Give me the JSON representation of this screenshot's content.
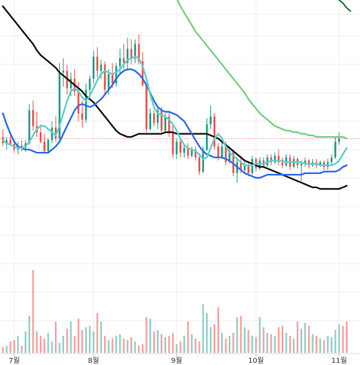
{
  "chart_data": {
    "type": "candlestick",
    "title": "",
    "xlabel": "",
    "ylabel": "",
    "grid": true,
    "x_ticks": [
      {
        "label": "7월",
        "index": 3
      },
      {
        "label": "8월",
        "index": 24
      },
      {
        "label": "9월",
        "index": 46
      },
      {
        "label": "10월",
        "index": 67
      },
      {
        "label": "11월",
        "index": 89
      }
    ],
    "last_price": 64,
    "candles": [
      {
        "o": 66,
        "h": 76,
        "l": 54,
        "c": 58
      },
      {
        "o": 58,
        "h": 66,
        "l": 50,
        "c": 62
      },
      {
        "o": 62,
        "h": 70,
        "l": 56,
        "c": 57
      },
      {
        "o": 57,
        "h": 63,
        "l": 46,
        "c": 50
      },
      {
        "o": 50,
        "h": 60,
        "l": 44,
        "c": 55
      },
      {
        "o": 55,
        "h": 62,
        "l": 48,
        "c": 52
      },
      {
        "o": 52,
        "h": 62,
        "l": 47,
        "c": 58
      },
      {
        "o": 58,
        "h": 108,
        "l": 56,
        "c": 100
      },
      {
        "o": 100,
        "h": 112,
        "l": 74,
        "c": 80
      },
      {
        "o": 80,
        "h": 98,
        "l": 66,
        "c": 72
      },
      {
        "o": 72,
        "h": 82,
        "l": 58,
        "c": 60
      },
      {
        "o": 60,
        "h": 70,
        "l": 45,
        "c": 48
      },
      {
        "o": 48,
        "h": 64,
        "l": 46,
        "c": 62
      },
      {
        "o": 62,
        "h": 86,
        "l": 58,
        "c": 78
      },
      {
        "o": 78,
        "h": 92,
        "l": 60,
        "c": 64
      },
      {
        "o": 64,
        "h": 160,
        "l": 62,
        "c": 148
      },
      {
        "o": 148,
        "h": 166,
        "l": 130,
        "c": 150
      },
      {
        "o": 150,
        "h": 158,
        "l": 120,
        "c": 128
      },
      {
        "o": 128,
        "h": 148,
        "l": 118,
        "c": 140
      },
      {
        "o": 140,
        "h": 152,
        "l": 118,
        "c": 124
      },
      {
        "o": 124,
        "h": 136,
        "l": 86,
        "c": 96
      },
      {
        "o": 96,
        "h": 112,
        "l": 78,
        "c": 88
      },
      {
        "o": 88,
        "h": 134,
        "l": 84,
        "c": 126
      },
      {
        "o": 126,
        "h": 144,
        "l": 116,
        "c": 140
      },
      {
        "o": 140,
        "h": 176,
        "l": 134,
        "c": 168
      },
      {
        "o": 168,
        "h": 180,
        "l": 142,
        "c": 150
      },
      {
        "o": 150,
        "h": 164,
        "l": 140,
        "c": 158
      },
      {
        "o": 158,
        "h": 162,
        "l": 120,
        "c": 126
      },
      {
        "o": 126,
        "h": 152,
        "l": 120,
        "c": 146
      },
      {
        "o": 146,
        "h": 160,
        "l": 128,
        "c": 134
      },
      {
        "o": 134,
        "h": 160,
        "l": 130,
        "c": 156
      },
      {
        "o": 156,
        "h": 178,
        "l": 146,
        "c": 166
      },
      {
        "o": 166,
        "h": 184,
        "l": 152,
        "c": 160
      },
      {
        "o": 160,
        "h": 192,
        "l": 150,
        "c": 178
      },
      {
        "o": 178,
        "h": 190,
        "l": 158,
        "c": 166
      },
      {
        "o": 166,
        "h": 190,
        "l": 160,
        "c": 184
      },
      {
        "o": 184,
        "h": 196,
        "l": 158,
        "c": 162
      },
      {
        "o": 162,
        "h": 174,
        "l": 130,
        "c": 132
      },
      {
        "o": 132,
        "h": 134,
        "l": 72,
        "c": 76
      },
      {
        "o": 76,
        "h": 102,
        "l": 74,
        "c": 96
      },
      {
        "o": 96,
        "h": 100,
        "l": 80,
        "c": 84
      },
      {
        "o": 84,
        "h": 104,
        "l": 76,
        "c": 100
      },
      {
        "o": 100,
        "h": 104,
        "l": 70,
        "c": 74
      },
      {
        "o": 74,
        "h": 96,
        "l": 72,
        "c": 92
      },
      {
        "o": 92,
        "h": 98,
        "l": 66,
        "c": 72
      },
      {
        "o": 72,
        "h": 82,
        "l": 40,
        "c": 44
      },
      {
        "o": 44,
        "h": 64,
        "l": 38,
        "c": 60
      },
      {
        "o": 60,
        "h": 66,
        "l": 40,
        "c": 46
      },
      {
        "o": 46,
        "h": 56,
        "l": 40,
        "c": 52
      },
      {
        "o": 52,
        "h": 58,
        "l": 38,
        "c": 42
      },
      {
        "o": 42,
        "h": 54,
        "l": 40,
        "c": 50
      },
      {
        "o": 50,
        "h": 54,
        "l": 36,
        "c": 40
      },
      {
        "o": 40,
        "h": 44,
        "l": 18,
        "c": 22
      },
      {
        "o": 22,
        "h": 54,
        "l": 20,
        "c": 50
      },
      {
        "o": 50,
        "h": 90,
        "l": 48,
        "c": 82
      },
      {
        "o": 82,
        "h": 106,
        "l": 76,
        "c": 92
      },
      {
        "o": 92,
        "h": 96,
        "l": 50,
        "c": 54
      },
      {
        "o": 54,
        "h": 58,
        "l": 36,
        "c": 40
      },
      {
        "o": 40,
        "h": 60,
        "l": 38,
        "c": 54
      },
      {
        "o": 54,
        "h": 60,
        "l": 30,
        "c": 34
      },
      {
        "o": 34,
        "h": 54,
        "l": 32,
        "c": 48
      },
      {
        "o": 48,
        "h": 50,
        "l": 16,
        "c": 20
      },
      {
        "o": 20,
        "h": 40,
        "l": 8,
        "c": 34
      },
      {
        "o": 34,
        "h": 42,
        "l": 20,
        "c": 24
      },
      {
        "o": 24,
        "h": 38,
        "l": 20,
        "c": 30
      },
      {
        "o": 30,
        "h": 34,
        "l": 16,
        "c": 20
      },
      {
        "o": 20,
        "h": 42,
        "l": 18,
        "c": 38
      },
      {
        "o": 38,
        "h": 40,
        "l": 22,
        "c": 26
      },
      {
        "o": 26,
        "h": 40,
        "l": 24,
        "c": 36
      },
      {
        "o": 36,
        "h": 40,
        "l": 26,
        "c": 30
      },
      {
        "o": 30,
        "h": 44,
        "l": 28,
        "c": 40
      },
      {
        "o": 40,
        "h": 44,
        "l": 30,
        "c": 34
      },
      {
        "o": 34,
        "h": 46,
        "l": 32,
        "c": 42
      },
      {
        "o": 42,
        "h": 50,
        "l": 30,
        "c": 34
      },
      {
        "o": 34,
        "h": 40,
        "l": 26,
        "c": 30
      },
      {
        "o": 30,
        "h": 44,
        "l": 28,
        "c": 40
      },
      {
        "o": 40,
        "h": 44,
        "l": 24,
        "c": 28
      },
      {
        "o": 28,
        "h": 42,
        "l": 26,
        "c": 38
      },
      {
        "o": 38,
        "h": 40,
        "l": 26,
        "c": 30
      },
      {
        "o": 30,
        "h": 36,
        "l": 10,
        "c": 32
      },
      {
        "o": 32,
        "h": 40,
        "l": 28,
        "c": 36
      },
      {
        "o": 36,
        "h": 38,
        "l": 26,
        "c": 30
      },
      {
        "o": 30,
        "h": 38,
        "l": 28,
        "c": 34
      },
      {
        "o": 34,
        "h": 38,
        "l": 26,
        "c": 30
      },
      {
        "o": 30,
        "h": 36,
        "l": 28,
        "c": 34
      },
      {
        "o": 34,
        "h": 36,
        "l": 24,
        "c": 28
      },
      {
        "o": 28,
        "h": 38,
        "l": 24,
        "c": 34
      },
      {
        "o": 34,
        "h": 44,
        "l": 30,
        "c": 40
      },
      {
        "o": 40,
        "h": 66,
        "l": 38,
        "c": 60
      },
      {
        "o": 60,
        "h": 72,
        "l": 56,
        "c": 64
      }
    ],
    "volume": [
      4,
      5,
      8,
      9,
      12,
      5,
      15,
      26,
      58,
      15,
      12,
      10,
      14,
      8,
      22,
      7,
      12,
      17,
      22,
      12,
      24,
      16,
      18,
      19,
      15,
      28,
      22,
      12,
      9,
      10,
      12,
      13,
      10,
      9,
      11,
      8,
      5,
      6,
      25,
      24,
      15,
      16,
      13,
      11,
      12,
      14,
      6,
      8,
      12,
      22,
      13,
      10,
      8,
      34,
      28,
      18,
      20,
      32,
      14,
      10,
      12,
      14,
      25,
      26,
      18,
      16,
      12,
      11,
      25,
      18,
      14,
      13,
      12,
      18,
      19,
      14,
      12,
      10,
      22,
      17,
      21,
      19,
      13,
      12,
      10,
      9,
      12,
      11,
      16,
      20,
      19,
      22
    ],
    "series": [
      {
        "color": "#1a1a1a",
        "values": [
          232,
          226,
          220,
          214,
          208,
          202,
          196,
          190,
          184,
          176,
          170,
          166,
          162,
          158,
          154,
          148,
          144,
          140,
          136,
          132,
          128,
          124,
          118,
          114,
          110,
          104,
          98,
          92,
          86,
          80,
          74,
          70,
          68,
          66,
          66,
          68,
          70,
          70,
          70,
          70,
          70,
          70,
          70,
          72,
          72,
          72,
          70,
          70,
          70,
          70,
          70,
          70,
          70,
          70,
          70,
          68,
          66,
          64,
          60,
          56,
          52,
          48,
          44,
          40,
          36,
          34,
          32,
          30,
          28,
          28,
          26,
          24,
          22,
          20,
          18,
          16,
          14,
          12,
          10,
          8,
          6,
          4,
          2,
          2,
          0,
          0,
          0,
          0,
          0,
          0,
          2,
          4
        ]
      },
      {
        "color": "#2f6df0",
        "values": [
          96,
          82,
          70,
          60,
          54,
          52,
          50,
          50,
          48,
          46,
          46,
          46,
          46,
          50,
          54,
          60,
          70,
          80,
          90,
          100,
          106,
          108,
          106,
          104,
          106,
          110,
          114,
          120,
          126,
          132,
          140,
          146,
          150,
          152,
          152,
          150,
          146,
          140,
          132,
          122,
          112,
          104,
          100,
          98,
          98,
          96,
          94,
          90,
          86,
          78,
          70,
          62,
          54,
          48,
          44,
          42,
          40,
          40,
          40,
          38,
          36,
          32,
          28,
          24,
          20,
          18,
          16,
          14,
          14,
          16,
          18,
          18,
          18,
          18,
          18,
          18,
          18,
          18,
          18,
          18,
          20,
          20,
          20,
          20,
          20,
          22,
          22,
          22,
          22,
          24,
          28,
          30
        ]
      },
      {
        "color": "#5fd0c8",
        "values": [
          62,
          58,
          56,
          54,
          52,
          52,
          54,
          60,
          68,
          76,
          80,
          80,
          76,
          72,
          68,
          80,
          96,
          112,
          124,
          128,
          124,
          116,
          112,
          118,
          128,
          138,
          146,
          150,
          148,
          146,
          148,
          152,
          158,
          164,
          166,
          168,
          166,
          156,
          140,
          120,
          104,
          96,
          94,
          92,
          88,
          82,
          74,
          64,
          56,
          52,
          50,
          48,
          44,
          38,
          40,
          52,
          64,
          70,
          64,
          54,
          46,
          42,
          38,
          34,
          30,
          30,
          30,
          32,
          32,
          32,
          34,
          36,
          36,
          36,
          36,
          34,
          34,
          34,
          34,
          34,
          32,
          32,
          32,
          32,
          30,
          30,
          30,
          30,
          32,
          36,
          44,
          52
        ]
      },
      {
        "color": "#7ccf86",
        "values": [
          null,
          null,
          null,
          null,
          null,
          null,
          null,
          null,
          null,
          null,
          null,
          null,
          null,
          null,
          null,
          null,
          null,
          null,
          null,
          null,
          null,
          null,
          null,
          null,
          null,
          null,
          null,
          null,
          null,
          null,
          null,
          null,
          null,
          null,
          null,
          null,
          null,
          340,
          330,
          318,
          306,
          294,
          282,
          272,
          262,
          252,
          242,
          232,
          224,
          216,
          208,
          200,
          194,
          188,
          182,
          176,
          170,
          164,
          158,
          152,
          146,
          140,
          134,
          128,
          122,
          114,
          108,
          102,
          96,
          92,
          88,
          84,
          80,
          78,
          76,
          74,
          74,
          72,
          72,
          70,
          70,
          68,
          68,
          66,
          66,
          66,
          66,
          66,
          66,
          66,
          66,
          64
        ]
      },
      {
        "color": "#1d6b2a",
        "values": [
          null,
          null,
          null,
          null,
          null,
          null,
          null,
          null,
          null,
          null,
          null,
          null,
          null,
          null,
          null,
          null,
          null,
          null,
          null,
          null,
          null,
          null,
          null,
          null,
          null,
          null,
          null,
          null,
          null,
          null,
          null,
          null,
          null,
          null,
          null,
          null,
          null,
          null,
          null,
          null,
          null,
          null,
          null,
          null,
          null,
          null,
          null,
          null,
          null,
          null,
          null,
          null,
          null,
          null,
          null,
          null,
          null,
          null,
          null,
          null,
          null,
          null,
          null,
          null,
          null,
          null,
          null,
          null,
          null,
          null,
          null,
          null,
          null,
          null,
          null,
          null,
          null,
          null,
          null,
          null,
          null,
          null,
          null,
          null,
          null,
          260,
          256,
          250,
          246,
          240,
          236,
          230,
          226
        ]
      }
    ],
    "colors": {
      "up": "#1f9e8a",
      "down": "#ef5350",
      "up_volume": "#8fd3ca",
      "down_volume": "#f5a3a1",
      "grid": "#eeeeee",
      "price_line": "#e57373"
    },
    "price_range": [
      0,
      240
    ],
    "volume_range": [
      0,
      70
    ]
  }
}
